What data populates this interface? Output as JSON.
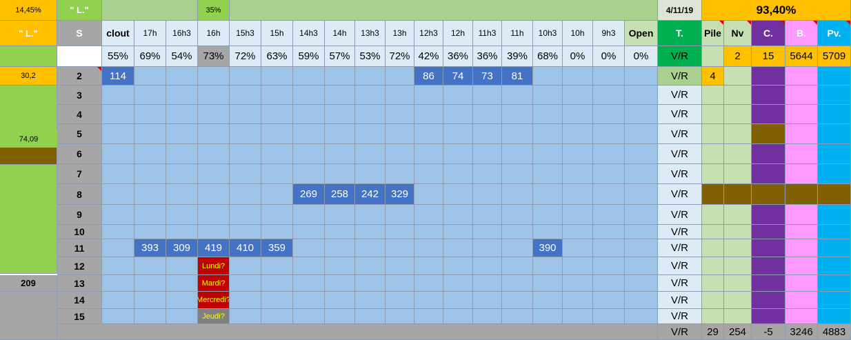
{
  "top": {
    "pct_left": "14,45%",
    "label_a": "\" L.\"",
    "pct_mid": "35%",
    "date": "4/11/19",
    "total_pct": "93,40%"
  },
  "left": {
    "label": "\" L.\"",
    "value_a": "30,2",
    "value_b": "74,09",
    "value_c": "209"
  },
  "header": {
    "s": "S",
    "columns": [
      "clout",
      "17h",
      "16h3",
      "16h",
      "15h3",
      "15h",
      "14h3",
      "14h",
      "13h3",
      "13h",
      "12h3",
      "12h",
      "11h3",
      "11h",
      "10h3",
      "10h",
      "9h3",
      "Open"
    ],
    "t": "T.",
    "pile": "Pile",
    "nv": "Nv",
    "c": "C.",
    "b": "B.",
    "pv": "Pv."
  },
  "percentages": [
    "55%",
    "69%",
    "54%",
    "73%",
    "72%",
    "63%",
    "59%",
    "57%",
    "53%",
    "72%",
    "42%",
    "36%",
    "36%",
    "39%",
    "68%",
    "0%",
    "0%",
    "0%"
  ],
  "summary_row": {
    "t": "V/R",
    "pile": "",
    "nv": "2",
    "c": "15",
    "b": "5644",
    "pv": "5709"
  },
  "rows": [
    {
      "s": "2",
      "t": "V/R",
      "pile": "4"
    },
    {
      "s": "3",
      "t": "V/R"
    },
    {
      "s": "4",
      "t": "V/R"
    },
    {
      "s": "5",
      "t": "V/R"
    },
    {
      "s": "6",
      "t": "V/R"
    },
    {
      "s": "7",
      "t": "V/R"
    },
    {
      "s": "8",
      "t": "V/R"
    },
    {
      "s": "9",
      "t": "V/R"
    },
    {
      "s": "10",
      "t": "V/R"
    },
    {
      "s": "11",
      "t": "V/R"
    },
    {
      "s": "12",
      "t": "V/R"
    },
    {
      "s": "13",
      "t": "V/R"
    },
    {
      "s": "14",
      "t": "V/R"
    },
    {
      "s": "15",
      "t": "V/R"
    }
  ],
  "values": [
    {
      "row": 0,
      "col": 0,
      "v": "114"
    },
    {
      "row": 0,
      "col": 10,
      "v": "86"
    },
    {
      "row": 0,
      "col": 11,
      "v": "74"
    },
    {
      "row": 0,
      "col": 12,
      "v": "73"
    },
    {
      "row": 0,
      "col": 13,
      "v": "81"
    },
    {
      "row": 6,
      "col": 6,
      "v": "269"
    },
    {
      "row": 6,
      "col": 7,
      "v": "258"
    },
    {
      "row": 6,
      "col": 8,
      "v": "242"
    },
    {
      "row": 6,
      "col": 9,
      "v": "329"
    },
    {
      "row": 9,
      "col": 1,
      "v": "393"
    },
    {
      "row": 9,
      "col": 2,
      "v": "309"
    },
    {
      "row": 9,
      "col": 3,
      "v": "419"
    },
    {
      "row": 9,
      "col": 4,
      "v": "410"
    },
    {
      "row": 9,
      "col": 5,
      "v": "359"
    },
    {
      "row": 9,
      "col": 14,
      "v": "390"
    }
  ],
  "days": [
    {
      "row": 10,
      "v": "Lundi?"
    },
    {
      "row": 11,
      "v": "Mardi?"
    },
    {
      "row": 12,
      "v": "Mercredi?"
    },
    {
      "row": 13,
      "v": "Jeudi?"
    }
  ],
  "footer": {
    "t": "V/R",
    "pile": "29",
    "nv": "254",
    "c": "-5",
    "b": "3246",
    "pv": "4883"
  },
  "colors": {
    "orange": "#ffc000",
    "green": "#92d050",
    "light_green": "#a9d08e",
    "grid_blue": "#9dc3e6",
    "pale_blue": "#ddebf7",
    "value_blue": "#4472c4",
    "pile_green": "#c6e0b4",
    "purple": "#7030a0",
    "pink": "#ff99ff",
    "cyan": "#00b0f0",
    "brown": "#806000",
    "gray": "#a6a6a6",
    "t_bg": "#ddebf7",
    "t_green": "#00b050"
  }
}
